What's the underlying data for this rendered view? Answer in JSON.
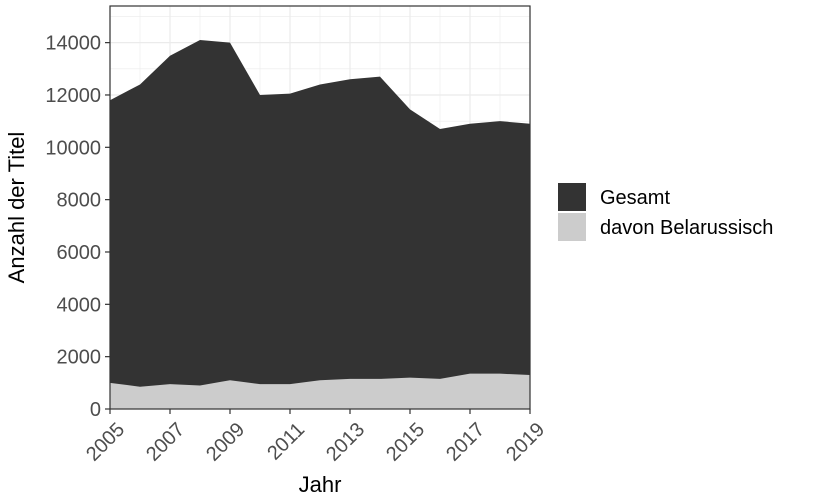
{
  "chart_data": {
    "type": "area",
    "title": "",
    "xlabel": "Jahr",
    "ylabel": "Anzahl der Titel",
    "x": [
      2005,
      2006,
      2007,
      2008,
      2009,
      2010,
      2011,
      2012,
      2013,
      2014,
      2015,
      2016,
      2017,
      2018,
      2019
    ],
    "xticks": [
      "2005",
      "2007",
      "2009",
      "2011",
      "2013",
      "2015",
      "2017",
      "2019"
    ],
    "yticks": [
      "0",
      "2000",
      "4000",
      "6000",
      "8000",
      "10000",
      "12000",
      "14000"
    ],
    "xlim": [
      2005,
      2019
    ],
    "ylim": [
      0,
      15400
    ],
    "grid": true,
    "legend_position": "right",
    "series": [
      {
        "name": "Gesamt",
        "color": "#333333",
        "values": [
          11800,
          12400,
          13500,
          14100,
          14000,
          12000,
          12050,
          12400,
          12600,
          12700,
          11450,
          10700,
          10900,
          11000,
          10900
        ]
      },
      {
        "name": "davon Belarussisch",
        "color": "#cccccc",
        "values": [
          1000,
          850,
          950,
          900,
          1100,
          950,
          950,
          1100,
          1150,
          1150,
          1200,
          1150,
          1350,
          1350,
          1300
        ]
      }
    ]
  }
}
